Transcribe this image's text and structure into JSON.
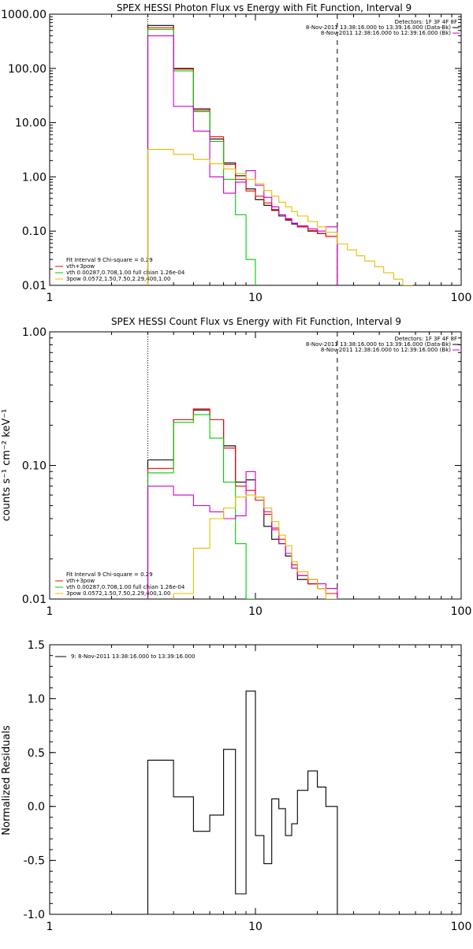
{
  "chart_data": [
    {
      "type": "line",
      "title": "SPEX HESSI Photon Flux vs Energy with Fit Function, Interval 9",
      "xscale": "log",
      "yscale": "log",
      "xlim": [
        1,
        100
      ],
      "ylim": [
        0.01,
        1000
      ],
      "xticks": [
        "1",
        "10",
        "100"
      ],
      "yticks": [
        "0.01",
        "0.10",
        "1.00",
        "10.00",
        "100.00",
        "1000.00"
      ],
      "legend_top": [
        "Detectors: 1F 3F 4F 8F",
        "8-Nov-2011 13:38:16.000 to 13:39:16.000 (Data-Bk)",
        "8-Nov-2011 12:38:16.000 to 12:39:16.000 (Bk)"
      ],
      "legend_bottom": [
        "Fit Interval 9   Chi-square = 0.29",
        "vth+3pow",
        "vth 0.00287,0.708,1.00  full chian 1.26e-04",
        "3pow 0.0572,1.50,7.50,2.29,400,1.00"
      ],
      "vlines": [
        {
          "x": 3,
          "style": "dotted"
        },
        {
          "x": 25,
          "style": "dashed"
        }
      ],
      "series": [
        {
          "color": "#000000",
          "edges": [
            3,
            4,
            5,
            6,
            7,
            8,
            9,
            10,
            11,
            12,
            13,
            14,
            15,
            16,
            18,
            20,
            22,
            25
          ],
          "values": [
            620,
            100,
            18,
            5,
            1.8,
            1.05,
            0.6,
            0.38,
            0.3,
            0.24,
            0.19,
            0.16,
            0.135,
            0.12,
            0.1,
            0.09,
            0.08
          ]
        },
        {
          "color": "#ff0000",
          "edges": [
            3,
            4,
            5,
            6,
            7,
            8,
            9,
            10,
            11,
            12,
            13,
            14,
            15,
            16,
            18,
            20,
            22,
            25
          ],
          "values": [
            560,
            97,
            17,
            5.5,
            1.7,
            0.9,
            0.55,
            0.44,
            0.33,
            0.25,
            0.2,
            0.165,
            0.14,
            0.12,
            0.102,
            0.09,
            0.08
          ]
        },
        {
          "color": "#00cc00",
          "edges": [
            3,
            4,
            5,
            6,
            7,
            8,
            9,
            10
          ],
          "values": [
            520,
            90,
            16,
            4.5,
            0.9,
            0.2,
            0.03
          ]
        },
        {
          "color": "#cc00cc",
          "edges": [
            3,
            4,
            5,
            6,
            7,
            8,
            9,
            10,
            11,
            12,
            13,
            14,
            15,
            16,
            18,
            20,
            22,
            25
          ],
          "values": [
            400,
            20,
            7,
            1,
            0.5,
            0.8,
            1.3,
            0.7,
            0.42,
            0.28,
            0.2,
            0.17,
            0.14,
            0.125,
            0.11,
            0.1,
            0.12
          ]
        },
        {
          "color": "#e0c000",
          "edges": [
            3,
            4,
            5,
            6,
            7,
            8,
            9,
            10,
            11,
            12,
            13,
            14,
            15,
            16,
            18,
            20,
            22,
            25,
            28,
            31,
            34,
            38,
            42,
            47,
            52,
            58
          ],
          "values": [
            3.2,
            2.6,
            2.1,
            1.75,
            1.4,
            1.15,
            0.9,
            0.75,
            0.56,
            0.44,
            0.34,
            0.28,
            0.23,
            0.19,
            0.15,
            0.12,
            0.095,
            0.058,
            0.045,
            0.035,
            0.028,
            0.022,
            0.017,
            0.013,
            0.01
          ]
        }
      ]
    },
    {
      "type": "line",
      "title": "SPEX HESSI Count Flux vs Energy with Fit Function, Interval 9",
      "ylabel": "counts s⁻¹ cm⁻² keV⁻¹",
      "xscale": "log",
      "yscale": "log",
      "xlim": [
        1,
        100
      ],
      "ylim": [
        0.01,
        1.0
      ],
      "xticks": [
        "1",
        "10",
        "100"
      ],
      "yticks": [
        "0.01",
        "0.10",
        "1.00"
      ],
      "legend_top": [
        "Detectors: 1F 3F 4F 8F",
        "8-Nov-2011 13:38:16.000 to 13:39:16.000 (Data-Bk)",
        "8-Nov-2011 12:38:16.000 to 12:39:16.000 (Bk)"
      ],
      "legend_bottom": [
        "Fit Interval 9   Chi-square = 0.29",
        "vth+3pow",
        "vth 0.00287,0.708,1.00  full chian 1.26e-04",
        "3pow 0.0572,1.50,7.50,2.29,400,1.00"
      ],
      "vlines": [
        {
          "x": 3,
          "style": "dotted"
        },
        {
          "x": 25,
          "style": "dashed"
        }
      ],
      "series": [
        {
          "color": "#000000",
          "edges": [
            3,
            4,
            5,
            6,
            7,
            8,
            9,
            10,
            11,
            12,
            13,
            14,
            15,
            16,
            18,
            20,
            22,
            25
          ],
          "values": [
            0.11,
            0.22,
            0.26,
            0.22,
            0.14,
            0.075,
            0.078,
            0.055,
            0.035,
            0.028,
            0.026,
            0.021,
            0.017,
            0.014,
            0.013,
            0.012,
            0.011
          ]
        },
        {
          "color": "#ff0000",
          "edges": [
            3,
            4,
            5,
            6,
            7,
            8,
            9,
            10,
            11,
            12,
            13,
            14,
            15,
            16,
            18,
            20,
            22,
            25
          ],
          "values": [
            0.095,
            0.22,
            0.265,
            0.22,
            0.135,
            0.07,
            0.065,
            0.055,
            0.043,
            0.034,
            0.028,
            0.022,
            0.018,
            0.015,
            0.013,
            0.012,
            0.011
          ]
        },
        {
          "color": "#00cc00",
          "edges": [
            3,
            4,
            5,
            6,
            7,
            8,
            9,
            10
          ],
          "values": [
            0.088,
            0.21,
            0.24,
            0.16,
            0.075,
            0.026,
            0.01
          ]
        },
        {
          "color": "#cc00cc",
          "edges": [
            3,
            4,
            5,
            6,
            7,
            8,
            9,
            10,
            11,
            12,
            13,
            14,
            15,
            16,
            18,
            20,
            22,
            25
          ],
          "values": [
            0.07,
            0.06,
            0.05,
            0.045,
            0.04,
            0.042,
            0.09,
            0.058,
            0.045,
            0.033,
            0.026,
            0.022,
            0.017,
            0.015,
            0.014,
            0.013,
            0.012
          ]
        },
        {
          "color": "#e0c000",
          "edges": [
            4,
            5,
            6,
            7,
            8,
            9,
            10,
            11,
            12,
            13,
            14,
            15,
            16,
            18,
            20,
            22,
            25
          ],
          "values": [
            0.011,
            0.024,
            0.04,
            0.048,
            0.058,
            0.06,
            0.058,
            0.048,
            0.038,
            0.03,
            0.025,
            0.019,
            0.016,
            0.014,
            0.012,
            0.01
          ]
        }
      ]
    },
    {
      "type": "line",
      "ylabel": "Normalized Residuals",
      "xscale": "log",
      "xlim": [
        1,
        100
      ],
      "ylim": [
        -1.0,
        1.5
      ],
      "xticks": [
        "1",
        "10",
        "100"
      ],
      "yticks": [
        "-1.0",
        "-0.5",
        "0.0",
        "0.5",
        "1.0",
        "1.5"
      ],
      "legend": [
        "9:  8-Nov-2011 13:38:16.000 to 13:39:16.000"
      ],
      "series": [
        {
          "color": "#000000",
          "edges": [
            3,
            4,
            5,
            6,
            7,
            8,
            9,
            10,
            11,
            12,
            13,
            14,
            15,
            16,
            18,
            20,
            22,
            25
          ],
          "values": [
            0.43,
            0.09,
            -0.23,
            -0.08,
            0.53,
            -0.81,
            1.07,
            -0.27,
            -0.53,
            0.07,
            -0.02,
            -0.27,
            -0.16,
            0.15,
            0.33,
            0.18,
            0.0
          ]
        }
      ]
    }
  ]
}
